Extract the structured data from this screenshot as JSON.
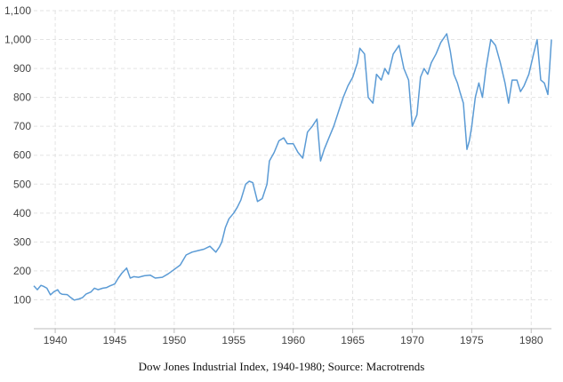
{
  "caption": "Dow Jones Industrial Index, 1940-1980; Source: Macrotrends",
  "chart_data": {
    "type": "line",
    "title": "",
    "xlabel": "",
    "ylabel": "",
    "xlim": [
      1938.2,
      1981.7
    ],
    "ylim": [
      0,
      1100
    ],
    "grid": true,
    "x_ticks": [
      1940,
      1945,
      1950,
      1955,
      1960,
      1965,
      1970,
      1975,
      1980
    ],
    "x_tick_labels": [
      "1940",
      "1945",
      "1950",
      "1955",
      "1960",
      "1965",
      "1970",
      "1975",
      "1980"
    ],
    "y_ticks": [
      100,
      200,
      300,
      400,
      500,
      600,
      700,
      800,
      900,
      1000,
      1100
    ],
    "y_tick_labels": [
      "100",
      "200",
      "300",
      "400",
      "500",
      "600",
      "700",
      "800",
      "900",
      "1,000",
      "1,100"
    ],
    "line_color": "#5b9bd5",
    "series": [
      {
        "x": [
          1938.2,
          1938.5,
          1938.8,
          1939.0,
          1939.3,
          1939.6,
          1939.9,
          1940.2,
          1940.4,
          1940.6,
          1941.0,
          1941.3,
          1941.6,
          1942.0,
          1942.3,
          1942.6,
          1943.0,
          1943.3,
          1943.6,
          1944.0,
          1944.3,
          1944.6,
          1945.0,
          1945.3,
          1945.6,
          1946.0,
          1946.3,
          1946.6,
          1947.0,
          1947.5,
          1948.0,
          1948.4,
          1949.0,
          1949.5,
          1950.0,
          1950.5,
          1951.0,
          1951.5,
          1952.0,
          1952.5,
          1953.0,
          1953.5,
          1953.8,
          1954.0,
          1954.3,
          1954.6,
          1955.0,
          1955.3,
          1955.6,
          1956.0,
          1956.3,
          1956.6,
          1957.0,
          1957.4,
          1957.8,
          1958.0,
          1958.4,
          1958.8,
          1959.2,
          1959.5,
          1960.0,
          1960.4,
          1960.8,
          1961.2,
          1961.6,
          1962.0,
          1962.3,
          1962.6,
          1963.0,
          1963.4,
          1963.8,
          1964.2,
          1964.6,
          1965.0,
          1965.4,
          1965.6,
          1966.0,
          1966.3,
          1966.7,
          1967.0,
          1967.4,
          1967.7,
          1968.0,
          1968.4,
          1968.9,
          1969.3,
          1969.7,
          1970.0,
          1970.4,
          1970.7,
          1971.0,
          1971.3,
          1971.6,
          1972.0,
          1972.4,
          1972.9,
          1973.2,
          1973.5,
          1973.8,
          1974.0,
          1974.3,
          1974.6,
          1974.8,
          1975.0,
          1975.3,
          1975.6,
          1975.9,
          1976.2,
          1976.6,
          1977.0,
          1977.4,
          1977.8,
          1978.1,
          1978.4,
          1978.8,
          1979.1,
          1979.4,
          1979.8,
          1980.2,
          1980.5,
          1980.8,
          1981.1,
          1981.4,
          1981.7
        ],
        "y": [
          148,
          135,
          150,
          147,
          140,
          117,
          128,
          135,
          123,
          119,
          118,
          108,
          99,
          103,
          108,
          120,
          127,
          140,
          135,
          140,
          142,
          148,
          155,
          175,
          192,
          210,
          175,
          180,
          178,
          183,
          185,
          175,
          178,
          190,
          205,
          220,
          255,
          265,
          270,
          275,
          285,
          265,
          283,
          300,
          350,
          380,
          400,
          420,
          445,
          500,
          510,
          505,
          440,
          450,
          500,
          580,
          610,
          650,
          660,
          640,
          640,
          610,
          590,
          680,
          700,
          725,
          580,
          620,
          660,
          700,
          750,
          800,
          840,
          870,
          920,
          970,
          950,
          800,
          780,
          880,
          860,
          900,
          880,
          950,
          980,
          900,
          860,
          700,
          740,
          870,
          900,
          880,
          920,
          950,
          990,
          1020,
          960,
          880,
          850,
          820,
          780,
          620,
          650,
          700,
          800,
          850,
          800,
          900,
          1000,
          980,
          920,
          850,
          780,
          860,
          860,
          820,
          840,
          880,
          950,
          1000,
          860,
          850,
          810,
          1000
        ]
      }
    ]
  }
}
